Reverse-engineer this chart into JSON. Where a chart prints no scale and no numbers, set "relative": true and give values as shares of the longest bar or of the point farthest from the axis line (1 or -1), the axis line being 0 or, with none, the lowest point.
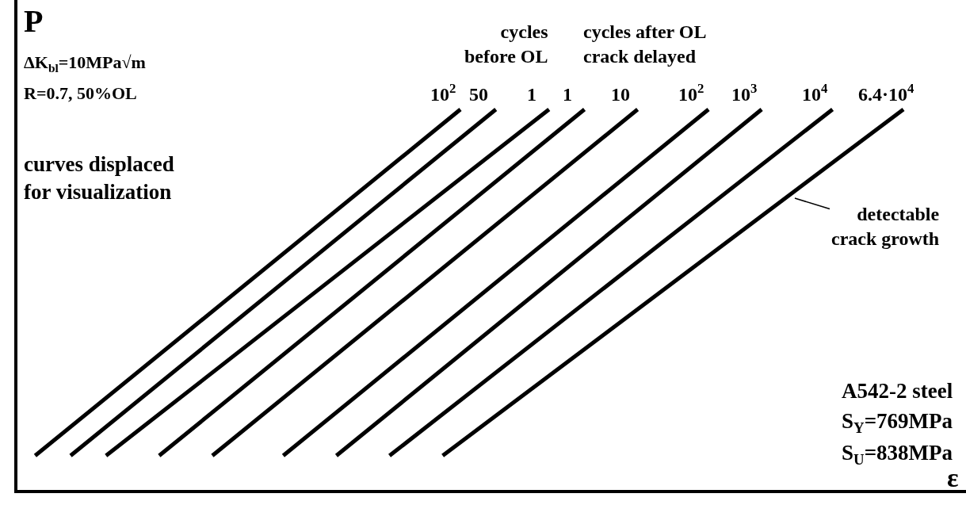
{
  "chart_data": {
    "type": "line",
    "relative": true,
    "xlabel": "ε",
    "ylabel": "P",
    "legend": false,
    "marker": "none",
    "line_style": "solid",
    "categories": [
      null,
      null,
      null,
      null,
      null,
      null,
      null,
      null,
      null,
      null,
      null,
      null,
      null,
      null,
      null,
      null,
      null,
      null,
      null,
      null,
      null,
      null,
      null,
      null,
      null,
      null,
      null,
      null,
      null,
      null,
      null,
      null,
      null,
      null,
      null,
      null,
      null,
      null,
      null,
      null,
      null,
      null,
      null,
      null,
      null,
      null,
      null,
      null,
      null,
      null,
      null
    ],
    "series": [
      {
        "name": "10$^{2}$",
        "color": "#000000",
        "values": [
          null,
          0.09,
          null,
          null,
          null,
          null,
          null,
          null,
          null,
          null,
          null,
          null,
          null,
          null,
          null,
          null,
          null,
          null,
          null,
          null,
          null,
          null,
          null,
          null,
          null,
          1,
          null,
          null,
          null,
          null,
          null,
          null,
          null,
          null,
          null,
          null,
          null,
          null,
          null,
          null,
          null,
          null,
          null,
          null,
          null,
          null,
          null,
          null,
          null,
          null,
          null
        ]
      },
      {
        "name": "50",
        "color": "#000000",
        "values": [
          null,
          null,
          null,
          0.09,
          null,
          null,
          null,
          null,
          null,
          null,
          null,
          null,
          null,
          null,
          null,
          null,
          null,
          null,
          null,
          null,
          null,
          null,
          null,
          null,
          null,
          null,
          null,
          1,
          null,
          null,
          null,
          null,
          null,
          null,
          null,
          null,
          null,
          null,
          null,
          null,
          null,
          null,
          null,
          null,
          null,
          null,
          null,
          null,
          null,
          null,
          null
        ]
      },
      {
        "name": "1",
        "color": "#000000",
        "values": [
          null,
          null,
          null,
          null,
          null,
          0.09,
          null,
          null,
          null,
          null,
          null,
          null,
          null,
          null,
          null,
          null,
          null,
          null,
          null,
          null,
          null,
          null,
          null,
          null,
          null,
          null,
          null,
          null,
          null,
          null,
          1,
          null,
          null,
          null,
          null,
          null,
          null,
          null,
          null,
          null,
          null,
          null,
          null,
          null,
          null,
          null,
          null,
          null,
          null,
          null,
          null
        ]
      },
      {
        "name": "1",
        "color": "#000000",
        "values": [
          null,
          null,
          null,
          null,
          null,
          null,
          null,
          null,
          0.09,
          null,
          null,
          null,
          null,
          null,
          null,
          null,
          null,
          null,
          null,
          null,
          null,
          null,
          null,
          null,
          null,
          null,
          null,
          null,
          null,
          null,
          null,
          null,
          1,
          null,
          null,
          null,
          null,
          null,
          null,
          null,
          null,
          null,
          null,
          null,
          null,
          null,
          null,
          null,
          null,
          null,
          null
        ]
      },
      {
        "name": "10",
        "color": "#000000",
        "values": [
          null,
          null,
          null,
          null,
          null,
          null,
          null,
          null,
          null,
          null,
          null,
          0.09,
          null,
          null,
          null,
          null,
          null,
          null,
          null,
          null,
          null,
          null,
          null,
          null,
          null,
          null,
          null,
          null,
          null,
          null,
          null,
          null,
          null,
          null,
          null,
          1,
          null,
          null,
          null,
          null,
          null,
          null,
          null,
          null,
          null,
          null,
          null,
          null,
          null,
          null,
          null
        ]
      },
      {
        "name": "10$^{2}$",
        "color": "#000000",
        "values": [
          null,
          null,
          null,
          null,
          null,
          null,
          null,
          null,
          null,
          null,
          null,
          null,
          null,
          null,
          null,
          0.09,
          null,
          null,
          null,
          null,
          null,
          null,
          null,
          null,
          null,
          null,
          null,
          null,
          null,
          null,
          null,
          null,
          null,
          null,
          null,
          null,
          null,
          null,
          null,
          1,
          null,
          null,
          null,
          null,
          null,
          null,
          null,
          null,
          null,
          null,
          null
        ]
      },
      {
        "name": "10$^{3}$",
        "color": "#000000",
        "values": [
          null,
          null,
          null,
          null,
          null,
          null,
          null,
          null,
          null,
          null,
          null,
          null,
          null,
          null,
          null,
          null,
          null,
          null,
          0.09,
          null,
          null,
          null,
          null,
          null,
          null,
          null,
          null,
          null,
          null,
          null,
          null,
          null,
          null,
          null,
          null,
          null,
          null,
          null,
          null,
          null,
          null,
          null,
          1,
          null,
          null,
          null,
          null,
          null,
          null,
          null,
          null
        ]
      },
      {
        "name": "10$^{4}$",
        "color": "#000000",
        "values": [
          null,
          null,
          null,
          null,
          null,
          null,
          null,
          null,
          null,
          null,
          null,
          null,
          null,
          null,
          null,
          null,
          null,
          null,
          null,
          null,
          null,
          0.09,
          null,
          null,
          null,
          null,
          null,
          null,
          null,
          null,
          null,
          null,
          null,
          null,
          null,
          null,
          null,
          null,
          null,
          null,
          null,
          null,
          null,
          null,
          null,
          null,
          1,
          null,
          null,
          null,
          null
        ]
      },
      {
        "name": "6.4·10$^{4}$",
        "color": "#000000",
        "values": [
          null,
          null,
          null,
          null,
          null,
          null,
          null,
          null,
          null,
          null,
          null,
          null,
          null,
          null,
          null,
          null,
          null,
          null,
          null,
          null,
          null,
          null,
          null,
          null,
          0.09,
          null,
          null,
          null,
          null,
          null,
          null,
          null,
          null,
          null,
          null,
          null,
          null,
          null,
          null,
          null,
          null,
          null,
          null,
          null,
          null,
          null,
          null,
          null,
          null,
          null,
          1
        ]
      }
    ],
    "annotations": [
      "ΔK$_{bl}$=10MPa√m",
      "R=0.7, 50%OL",
      "curves displaced\nfor visualization",
      "cycles\nbefore OL",
      "cycles after OL\ncrack delayed",
      "detectable\ncrack growth",
      "A542-2 steel",
      "S$_{Y}$=769MPa",
      "S$_{U}$=838MPa"
    ]
  }
}
